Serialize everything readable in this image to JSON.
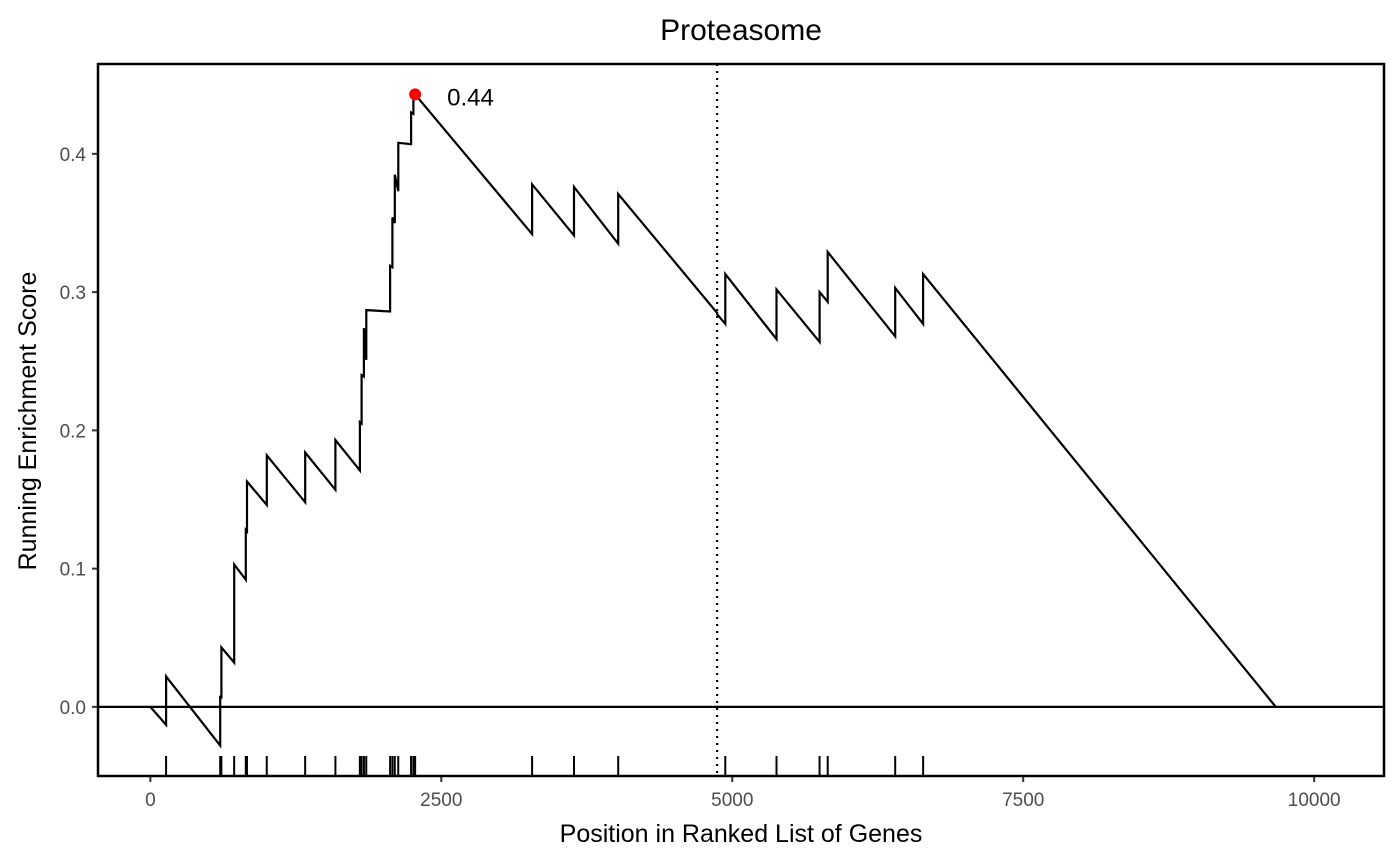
{
  "chart_data": {
    "type": "line",
    "title": "Proteasome",
    "xlabel": "Position in Ranked List of Genes",
    "ylabel": "Running Enrichment Score",
    "xlim": [
      -450,
      10600
    ],
    "ylim": [
      -0.05,
      0.465
    ],
    "x_ticks": [
      0,
      2500,
      5000,
      7500,
      10000
    ],
    "y_ticks": [
      0.0,
      0.1,
      0.2,
      0.3,
      0.4
    ],
    "x_tick_labels": [
      "0",
      "2500",
      "5000",
      "7500",
      "10000"
    ],
    "y_tick_labels": [
      "0.0",
      "0.1",
      "0.2",
      "0.3",
      "0.4"
    ],
    "grid": false,
    "series": [
      {
        "x": [
          0,
          135,
          135,
          600,
          600,
          610,
          610,
          720,
          720,
          820,
          820,
          830,
          830,
          1000,
          1000,
          1330,
          1330,
          1590,
          1590,
          1800,
          1800,
          1815,
          1815,
          1835,
          1835,
          1855,
          1855,
          2060,
          2060,
          2080,
          2080,
          2100,
          2100,
          2130,
          2130,
          2240,
          2240,
          2260,
          2260,
          2275,
          2275,
          3280,
          3280,
          3640,
          3640,
          4020,
          4020,
          4870,
          4870,
          4940,
          4940,
          5380,
          5380,
          5750,
          5750,
          5820,
          5820,
          6400,
          6400,
          6640,
          6640,
          9670
        ],
        "y": [
          0,
          -0.013,
          0.022,
          -0.028,
          0.008,
          0.006,
          0.043,
          0.032,
          0.103,
          0.092,
          0.128,
          0.127,
          0.163,
          0.146,
          0.182,
          0.148,
          0.184,
          0.157,
          0.193,
          0.171,
          0.206,
          0.205,
          0.24,
          0.239,
          0.274,
          0.251,
          0.287,
          0.286,
          0.319,
          0.318,
          0.354,
          0.35,
          0.385,
          0.373,
          0.408,
          0.407,
          0.43,
          0.429,
          0.443,
          0.442,
          0.443,
          0.342,
          0.378,
          0.341,
          0.376,
          0.335,
          0.371,
          0.285,
          0.284,
          0.277,
          0.313,
          0.266,
          0.302,
          0.264,
          0.3,
          0.293,
          0.329,
          0.268,
          0.303,
          0.277,
          0.313,
          0.0
        ]
      }
    ],
    "hits": [
      135,
      600,
      610,
      720,
      820,
      830,
      1000,
      1330,
      1590,
      1800,
      1815,
      1835,
      1855,
      2060,
      2080,
      2100,
      2130,
      2240,
      2260,
      2275,
      3280,
      3640,
      4020,
      4940,
      5380,
      5750,
      5820,
      6400,
      6640
    ],
    "peak": {
      "x": 2275,
      "y": 0.443,
      "label": "0.44",
      "color": "#ff0000"
    },
    "vline": {
      "x": 4870,
      "style": "dotted"
    },
    "hline": {
      "y": 0.0
    },
    "line_color": "#000000"
  }
}
